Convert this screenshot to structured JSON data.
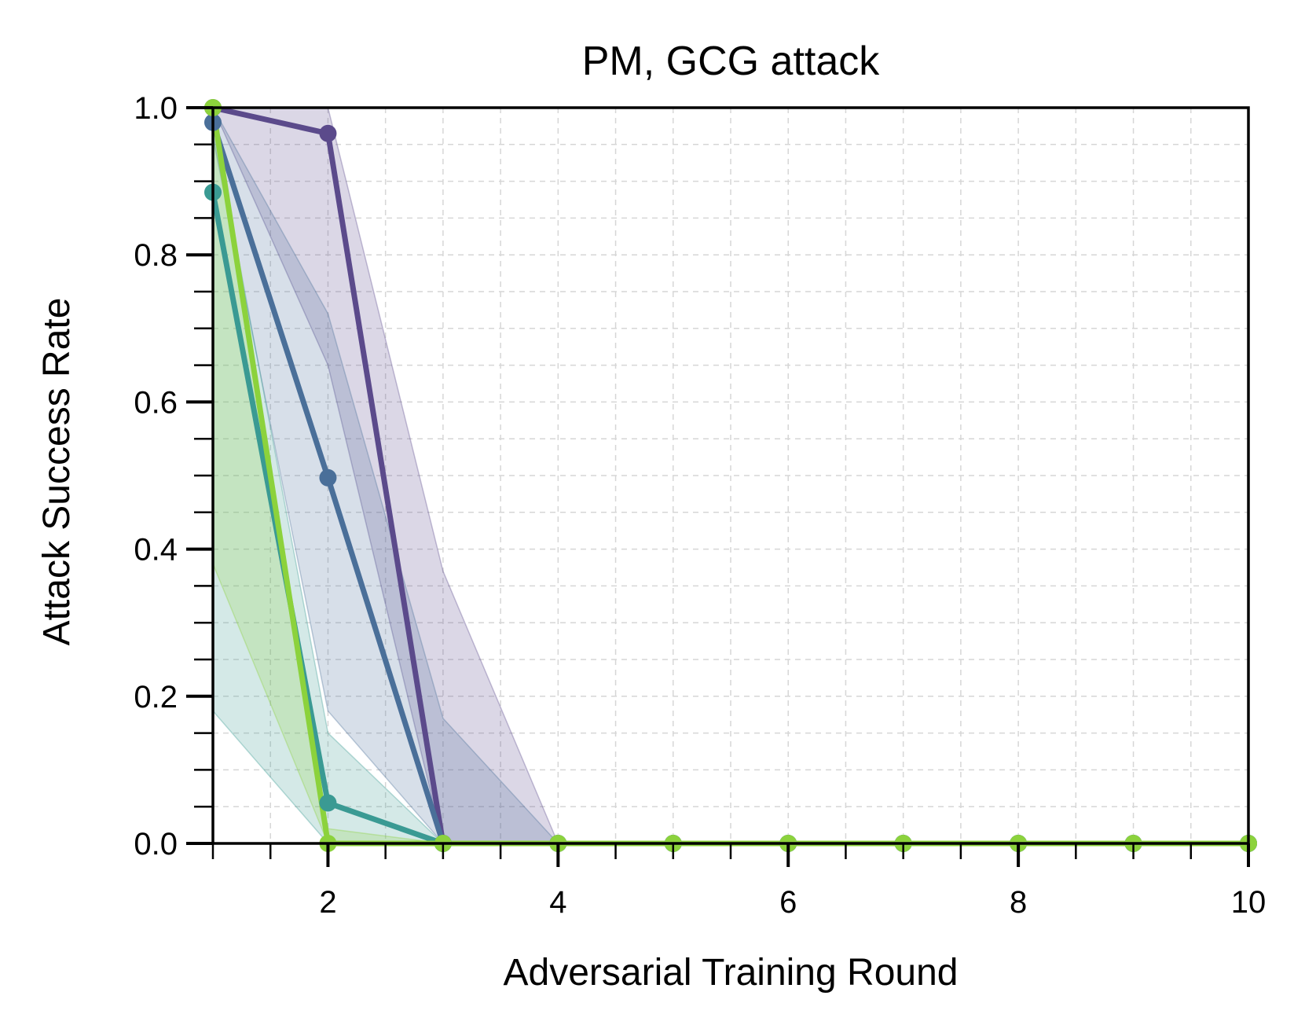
{
  "chart_data": {
    "type": "line",
    "title": "PM, GCG attack",
    "xlabel": "Adversarial Training Round",
    "ylabel": "Attack Success Rate",
    "xlim": [
      1,
      10
    ],
    "ylim": [
      0,
      1
    ],
    "xticks": [
      2,
      4,
      6,
      8,
      10
    ],
    "xtick_labels": [
      "2",
      "4",
      "6",
      "8",
      "10"
    ],
    "yticks": [
      0.0,
      0.2,
      0.4,
      0.6,
      0.8,
      1.0
    ],
    "ytick_labels": [
      "0.0",
      "0.2",
      "0.4",
      "0.6",
      "0.8",
      "1.0"
    ],
    "grid": true,
    "grid_style": "dashed",
    "legend": "none",
    "series": [
      {
        "color": "#5b4a8b",
        "x": [
          1,
          2,
          3,
          4,
          5,
          6,
          7,
          8,
          9,
          10
        ],
        "y": [
          1.0,
          0.965,
          0.0,
          0.0,
          0.0,
          0.0,
          0.0,
          0.0,
          0.0,
          0.0
        ],
        "y_lower": [
          1.0,
          0.65,
          0.0,
          0.0,
          0.0,
          0.0,
          0.0,
          0.0,
          0.0,
          0.0
        ],
        "y_upper": [
          1.0,
          1.0,
          0.37,
          0.0,
          0.0,
          0.0,
          0.0,
          0.0,
          0.0,
          0.0
        ]
      },
      {
        "color": "#4a6f99",
        "x": [
          1,
          2,
          3,
          4,
          5,
          6,
          7,
          8,
          9,
          10
        ],
        "y": [
          0.98,
          0.497,
          0.0,
          0.0,
          0.0,
          0.0,
          0.0,
          0.0,
          0.0,
          0.0
        ],
        "y_lower": [
          0.96,
          0.18,
          0.0,
          0.0,
          0.0,
          0.0,
          0.0,
          0.0,
          0.0,
          0.0
        ],
        "y_upper": [
          1.0,
          0.72,
          0.17,
          0.0,
          0.0,
          0.0,
          0.0,
          0.0,
          0.0,
          0.0
        ]
      },
      {
        "color": "#3a9a93",
        "x": [
          1,
          2,
          3,
          4,
          5,
          6,
          7,
          8,
          9,
          10
        ],
        "y": [
          0.885,
          0.055,
          0.0,
          0.0,
          0.0,
          0.0,
          0.0,
          0.0,
          0.0,
          0.0
        ],
        "y_lower": [
          0.18,
          0.0,
          0.0,
          0.0,
          0.0,
          0.0,
          0.0,
          0.0,
          0.0,
          0.0
        ],
        "y_upper": [
          0.98,
          0.15,
          0.0,
          0.0,
          0.0,
          0.0,
          0.0,
          0.0,
          0.0,
          0.0
        ]
      },
      {
        "color": "#8cd23c",
        "x": [
          1,
          2,
          3,
          4,
          5,
          6,
          7,
          8,
          9,
          10
        ],
        "y": [
          1.0,
          0.0,
          0.0,
          0.0,
          0.0,
          0.0,
          0.0,
          0.0,
          0.0,
          0.0
        ],
        "y_lower": [
          0.38,
          0.0,
          0.0,
          0.0,
          0.0,
          0.0,
          0.0,
          0.0,
          0.0,
          0.0
        ],
        "y_upper": [
          1.0,
          0.02,
          0.0,
          0.0,
          0.0,
          0.0,
          0.0,
          0.0,
          0.0,
          0.0
        ]
      }
    ]
  }
}
